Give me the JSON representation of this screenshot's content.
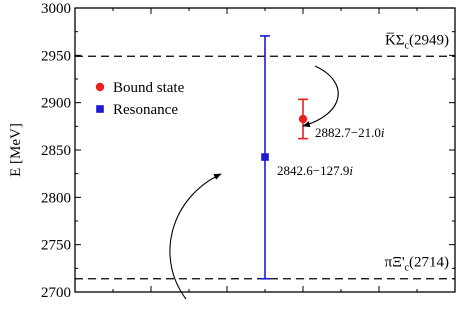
{
  "chart_data": {
    "type": "scatter",
    "ylabel": "E [MeV]",
    "ylim": [
      2700,
      3000
    ],
    "y_ticks": [
      2700,
      2750,
      2800,
      2850,
      2900,
      2950,
      3000
    ],
    "x_tick_count": 10,
    "grid": false,
    "legend_position": "upper-left",
    "legend": [
      {
        "label": "Bound state",
        "marker": "circle",
        "color": "#e8201e"
      },
      {
        "label": "Resonance",
        "marker": "square",
        "color": "#1a1ad6"
      }
    ],
    "thresholds": [
      {
        "value": 2949,
        "label_main": "K̅Σ",
        "label_sub": "c",
        "label_tail": "(2949)"
      },
      {
        "value": 2714,
        "label_main": "πΞ'",
        "label_sub": "c",
        "label_tail": "(2714)"
      }
    ],
    "series": [
      {
        "name": "Resonance",
        "color": "#1a1ad6",
        "marker": "square",
        "x": 0.5,
        "y": 2842.6,
        "y_err_low": 2714,
        "y_err_high": 2970.5,
        "annotation_real": "2842.6−127.9",
        "annotation_imag": "i"
      },
      {
        "name": "Bound state",
        "color": "#e8201e",
        "marker": "circle",
        "x": 0.6,
        "y": 2882.7,
        "y_err_low": 2862,
        "y_err_high": 2903.5,
        "annotation_real": "2882.7−21.0",
        "annotation_imag": "i"
      }
    ]
  }
}
